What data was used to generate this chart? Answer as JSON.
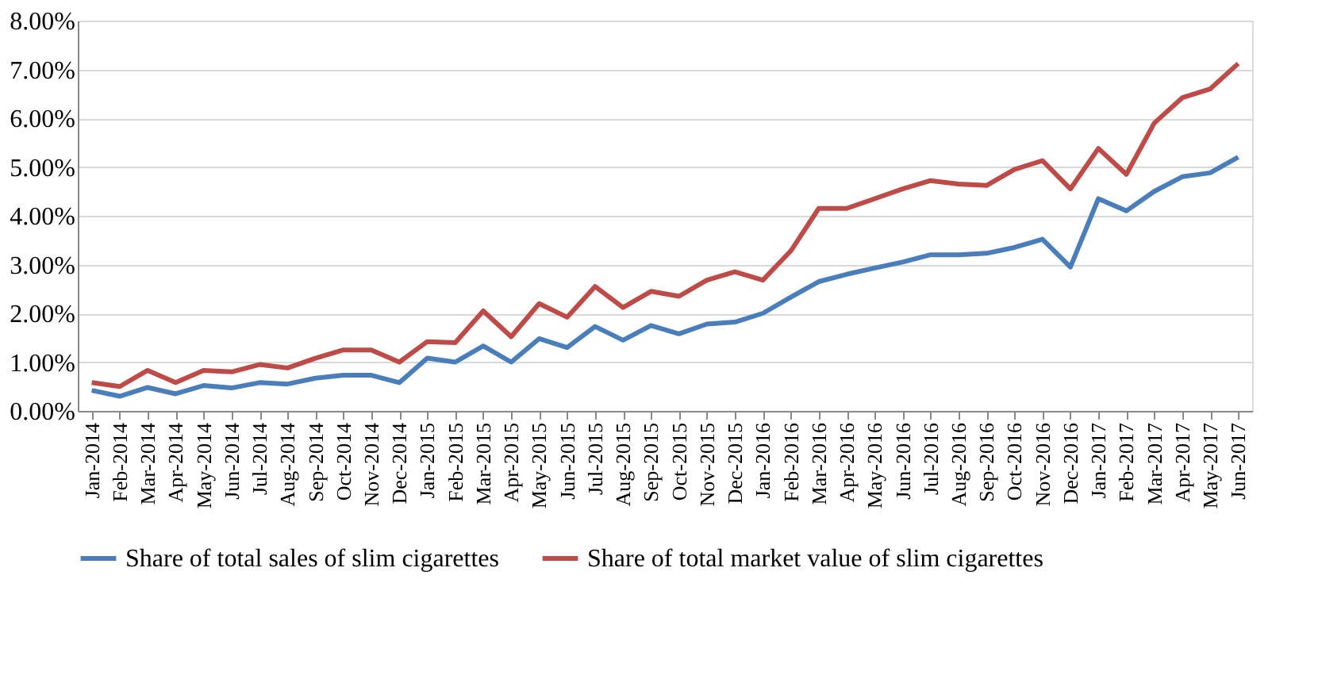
{
  "chart_data": {
    "type": "line",
    "categories": [
      "Jan-2014",
      "Feb-2014",
      "Mar-2014",
      "Apr-2014",
      "May-2014",
      "Jun-2014",
      "Jul-2014",
      "Aug-2014",
      "Sep-2014",
      "Oct-2014",
      "Nov-2014",
      "Dec-2014",
      "Jan-2015",
      "Feb-2015",
      "Mar-2015",
      "Apr-2015",
      "May-2015",
      "Jun-2015",
      "Jul-2015",
      "Aug-2015",
      "Sep-2015",
      "Oct-2015",
      "Nov-2015",
      "Dec-2015",
      "Jan-2016",
      "Feb-2016",
      "Mar-2016",
      "Apr-2016",
      "May-2016",
      "Jun-2016",
      "Jul-2016",
      "Aug-2016",
      "Sep-2016",
      "Oct-2016",
      "Nov-2016",
      "Dec-2016",
      "Jan-2017",
      "Feb-2017",
      "Mar-2017",
      "Apr-2017",
      "May-2017",
      "Jun-2017"
    ],
    "series": [
      {
        "name": "Share of total sales of slim cigarettes",
        "color": "#4a7ebb",
        "values": [
          0.42,
          0.3,
          0.48,
          0.35,
          0.52,
          0.47,
          0.58,
          0.55,
          0.67,
          0.73,
          0.73,
          0.58,
          1.08,
          1.0,
          1.33,
          1.0,
          1.48,
          1.3,
          1.73,
          1.45,
          1.75,
          1.58,
          1.78,
          1.82,
          2.0,
          2.33,
          2.65,
          2.8,
          2.93,
          3.05,
          3.2,
          3.2,
          3.23,
          3.35,
          3.52,
          2.95,
          4.35,
          4.1,
          4.5,
          4.8,
          4.88,
          5.2
        ]
      },
      {
        "name": "Share of total market value of slim cigarettes",
        "color": "#be4b48",
        "values": [
          0.58,
          0.5,
          0.83,
          0.58,
          0.83,
          0.8,
          0.95,
          0.88,
          1.08,
          1.25,
          1.25,
          1.0,
          1.42,
          1.4,
          2.05,
          1.52,
          2.2,
          1.92,
          2.55,
          2.12,
          2.45,
          2.35,
          2.68,
          2.85,
          2.68,
          3.28,
          4.15,
          4.15,
          4.35,
          4.55,
          4.72,
          4.65,
          4.62,
          4.95,
          5.13,
          4.55,
          5.38,
          4.85,
          5.9,
          6.42,
          6.6,
          7.12
        ]
      }
    ],
    "ylim": [
      0,
      8
    ],
    "yticks": [
      {
        "value": 0,
        "label": "0.00%"
      },
      {
        "value": 1,
        "label": "1.00%"
      },
      {
        "value": 2,
        "label": "2.00%"
      },
      {
        "value": 3,
        "label": "3.00%"
      },
      {
        "value": 4,
        "label": "4.00%"
      },
      {
        "value": 5,
        "label": "5.00%"
      },
      {
        "value": 6,
        "label": "6.00%"
      },
      {
        "value": 7,
        "label": "7.00%"
      },
      {
        "value": 8,
        "label": "8.00%"
      }
    ],
    "grid": "y",
    "legend": "bottom",
    "line_style": "solid",
    "marker": "none"
  }
}
